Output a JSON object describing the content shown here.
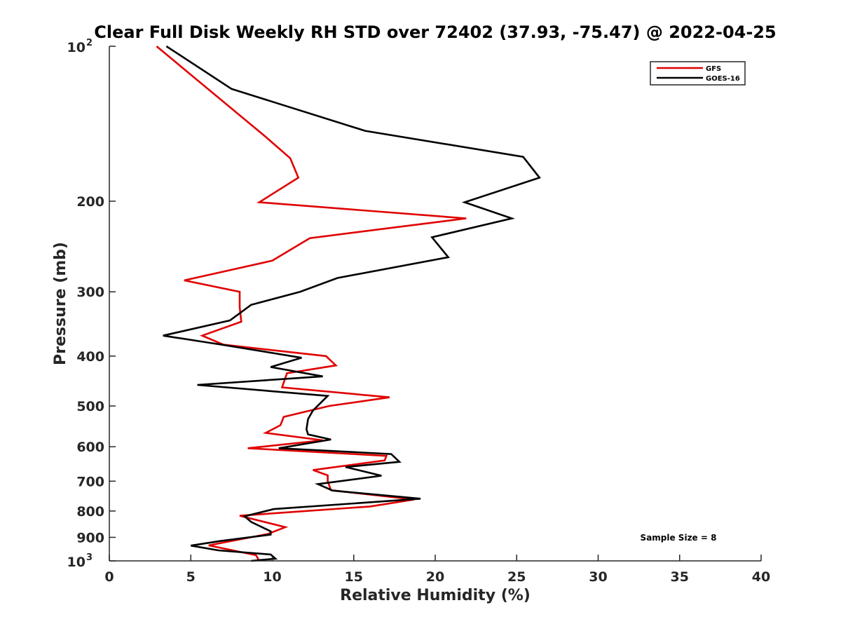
{
  "chart_data": {
    "type": "line",
    "title": "Clear Full Disk Weekly RH STD over 72402 (37.93, -75.47) @ 2022-04-25",
    "xlabel": "Relative Humidity (%)",
    "ylabel": "Pressure (mb)",
    "xlim": [
      0,
      40
    ],
    "ylim": [
      100,
      1000
    ],
    "yscale": "log",
    "yreversed": true,
    "grid": false,
    "x_ticks": [
      "0",
      "5",
      "10",
      "15",
      "20",
      "25",
      "30",
      "35",
      "40"
    ],
    "y_ticks": [
      {
        "value": 100,
        "base": "10",
        "sup": "2"
      },
      {
        "value": 200,
        "label": "200"
      },
      {
        "value": 300,
        "label": "300"
      },
      {
        "value": 400,
        "label": "400"
      },
      {
        "value": 500,
        "label": "500"
      },
      {
        "value": 600,
        "label": "600"
      },
      {
        "value": 700,
        "label": "700"
      },
      {
        "value": 800,
        "label": "800"
      },
      {
        "value": 900,
        "label": "900"
      },
      {
        "value": 1000,
        "base": "10",
        "sup": "3"
      }
    ],
    "legend_placement": "top-right",
    "annotation": "Sample Size = 8",
    "series": [
      {
        "name": "GFS",
        "color": "#e00000",
        "points": [
          {
            "x": 2.9,
            "p": 100
          },
          {
            "x": 9.6,
            "p": 150
          },
          {
            "x": 11.1,
            "p": 165
          },
          {
            "x": 11.6,
            "p": 180
          },
          {
            "x": 9.2,
            "p": 201
          },
          {
            "x": 21.9,
            "p": 216
          },
          {
            "x": 12.3,
            "p": 236
          },
          {
            "x": 10.0,
            "p": 261
          },
          {
            "x": 4.6,
            "p": 285
          },
          {
            "x": 8.0,
            "p": 300
          },
          {
            "x": 8.0,
            "p": 321
          },
          {
            "x": 8.1,
            "p": 343
          },
          {
            "x": 5.7,
            "p": 365
          },
          {
            "x": 7.0,
            "p": 380
          },
          {
            "x": 13.3,
            "p": 400
          },
          {
            "x": 13.9,
            "p": 417
          },
          {
            "x": 10.9,
            "p": 432
          },
          {
            "x": 10.6,
            "p": 460
          },
          {
            "x": 17.2,
            "p": 481
          },
          {
            "x": 13.5,
            "p": 500
          },
          {
            "x": 10.7,
            "p": 525
          },
          {
            "x": 10.5,
            "p": 545
          },
          {
            "x": 9.6,
            "p": 564
          },
          {
            "x": 13.1,
            "p": 583
          },
          {
            "x": 8.5,
            "p": 604
          },
          {
            "x": 17.0,
            "p": 625
          },
          {
            "x": 16.9,
            "p": 638
          },
          {
            "x": 12.5,
            "p": 666
          },
          {
            "x": 13.4,
            "p": 682
          },
          {
            "x": 13.4,
            "p": 700
          },
          {
            "x": 13.6,
            "p": 729
          },
          {
            "x": 18.7,
            "p": 760
          },
          {
            "x": 16.0,
            "p": 784
          },
          {
            "x": 8.0,
            "p": 817
          },
          {
            "x": 10.8,
            "p": 860
          },
          {
            "x": 9.7,
            "p": 887
          },
          {
            "x": 6.1,
            "p": 933
          },
          {
            "x": 9.0,
            "p": 975
          },
          {
            "x": 9.2,
            "p": 1000
          }
        ]
      },
      {
        "name": "GOES-16",
        "color": "#000000",
        "points": [
          {
            "x": 3.5,
            "p": 100
          },
          {
            "x": 7.5,
            "p": 121
          },
          {
            "x": 15.7,
            "p": 146
          },
          {
            "x": 25.4,
            "p": 164
          },
          {
            "x": 26.4,
            "p": 180
          },
          {
            "x": 21.8,
            "p": 201
          },
          {
            "x": 24.7,
            "p": 216
          },
          {
            "x": 19.8,
            "p": 235
          },
          {
            "x": 20.8,
            "p": 257
          },
          {
            "x": 14.0,
            "p": 282
          },
          {
            "x": 11.7,
            "p": 300
          },
          {
            "x": 8.7,
            "p": 318
          },
          {
            "x": 7.4,
            "p": 341
          },
          {
            "x": 3.3,
            "p": 365
          },
          {
            "x": 6.9,
            "p": 380
          },
          {
            "x": 11.8,
            "p": 403
          },
          {
            "x": 9.9,
            "p": 420
          },
          {
            "x": 13.1,
            "p": 438
          },
          {
            "x": 5.4,
            "p": 455
          },
          {
            "x": 13.4,
            "p": 478
          },
          {
            "x": 12.5,
            "p": 510
          },
          {
            "x": 12.2,
            "p": 530
          },
          {
            "x": 12.1,
            "p": 555
          },
          {
            "x": 12.2,
            "p": 568
          },
          {
            "x": 13.6,
            "p": 581
          },
          {
            "x": 10.4,
            "p": 604
          },
          {
            "x": 17.3,
            "p": 620
          },
          {
            "x": 17.8,
            "p": 642
          },
          {
            "x": 14.5,
            "p": 657
          },
          {
            "x": 16.7,
            "p": 683
          },
          {
            "x": 12.8,
            "p": 709
          },
          {
            "x": 13.7,
            "p": 730
          },
          {
            "x": 19.1,
            "p": 757
          },
          {
            "x": 10.1,
            "p": 793
          },
          {
            "x": 8.3,
            "p": 819
          },
          {
            "x": 8.7,
            "p": 840
          },
          {
            "x": 9.9,
            "p": 876
          },
          {
            "x": 9.9,
            "p": 889
          },
          {
            "x": 6.8,
            "p": 915
          },
          {
            "x": 5.0,
            "p": 934
          },
          {
            "x": 6.7,
            "p": 954
          },
          {
            "x": 9.9,
            "p": 972
          },
          {
            "x": 10.2,
            "p": 990
          },
          {
            "x": 8.7,
            "p": 1000
          }
        ]
      }
    ]
  }
}
